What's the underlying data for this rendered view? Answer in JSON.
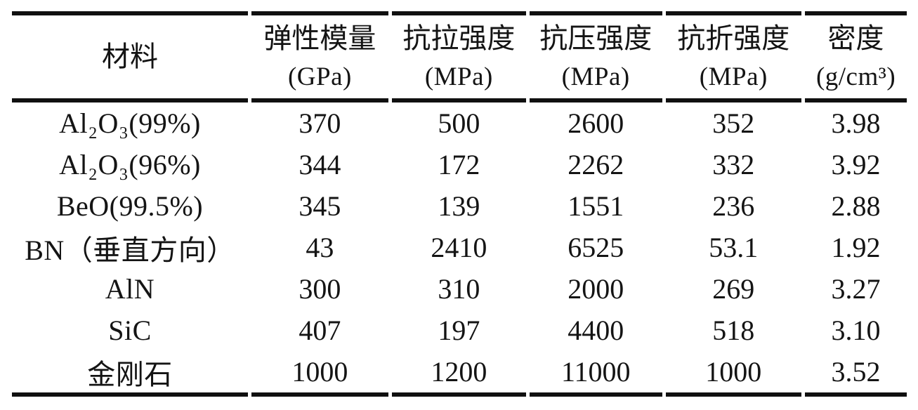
{
  "table": {
    "columns": [
      {
        "label": "材料",
        "unit": ""
      },
      {
        "label": "弹性模量",
        "unit": "(GPa)"
      },
      {
        "label": "抗拉强度",
        "unit": "(MPa)"
      },
      {
        "label": "抗压强度",
        "unit": "(MPa)"
      },
      {
        "label": "抗折强度",
        "unit": "(MPa)"
      },
      {
        "label": "密度",
        "unit": "(g/cm³)"
      }
    ],
    "rows": [
      {
        "material": "Al₂O₃(99%)",
        "values": [
          "370",
          "500",
          "2600",
          "352",
          "3.98"
        ]
      },
      {
        "material": "Al₂O₃(96%)",
        "values": [
          "344",
          "172",
          "2262",
          "332",
          "3.92"
        ]
      },
      {
        "material": "BeO(99.5%)",
        "values": [
          "345",
          "139",
          "1551",
          "236",
          "2.88"
        ]
      },
      {
        "material": "BN（垂直方向）",
        "values": [
          "43",
          "2410",
          "6525",
          "53.1",
          "1.92"
        ]
      },
      {
        "material": "AlN",
        "values": [
          "300",
          "310",
          "2000",
          "269",
          "3.27"
        ]
      },
      {
        "material": "SiC",
        "values": [
          "407",
          "197",
          "4400",
          "518",
          "3.10"
        ]
      },
      {
        "material": "金刚石",
        "values": [
          "1000",
          "1200",
          "11000",
          "1000",
          "3.52"
        ]
      }
    ],
    "colors": {
      "text": "#141414",
      "rule": "#101010",
      "background": "#ffffff"
    }
  }
}
